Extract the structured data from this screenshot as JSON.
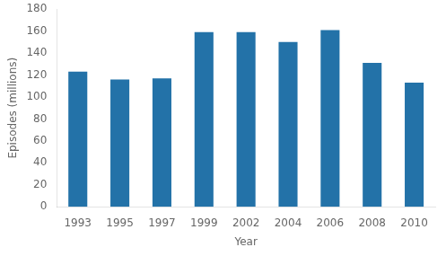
{
  "chart_data": {
    "type": "bar",
    "categories": [
      "1993",
      "1995",
      "1997",
      "1999",
      "2002",
      "2004",
      "2006",
      "2008",
      "2010"
    ],
    "values": [
      123,
      116,
      117,
      159,
      159,
      150,
      161,
      131,
      113
    ],
    "color": "#2372a8",
    "xlabel": "Year",
    "ylabel": "Episodes (millions)",
    "ylim": [
      0,
      180
    ],
    "yticks": [
      0,
      20,
      40,
      60,
      80,
      100,
      120,
      140,
      160,
      180
    ],
    "grid": false
  }
}
